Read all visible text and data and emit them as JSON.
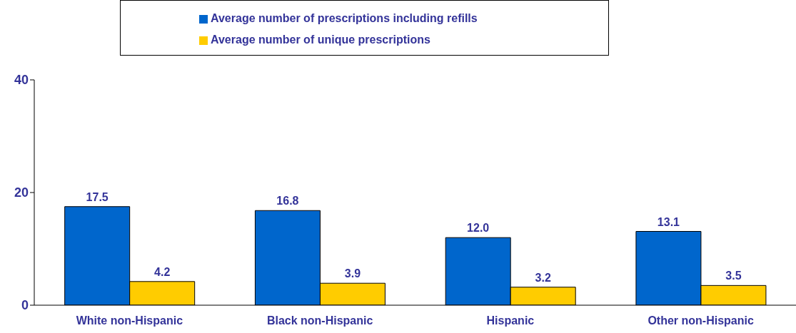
{
  "chart_data": {
    "type": "bar",
    "categories": [
      "White non-Hispanic",
      "Black non-Hispanic",
      "Hispanic",
      "Other non-Hispanic"
    ],
    "series": [
      {
        "name": "Average number of prescriptions including refills",
        "color": "#0066cc",
        "values": [
          17.5,
          16.8,
          12.0,
          13.1
        ],
        "value_labels": [
          "17.5",
          "16.8",
          "12.0",
          "13.1"
        ]
      },
      {
        "name": "Average number of unique prescriptions",
        "color": "#ffcc00",
        "values": [
          4.2,
          3.9,
          3.2,
          3.5
        ],
        "value_labels": [
          "4.2",
          "3.9",
          "3.2",
          "3.5"
        ]
      }
    ],
    "ylim": [
      0,
      40
    ],
    "yticks": [
      0,
      20,
      40
    ],
    "grid": false,
    "legend": "top"
  }
}
